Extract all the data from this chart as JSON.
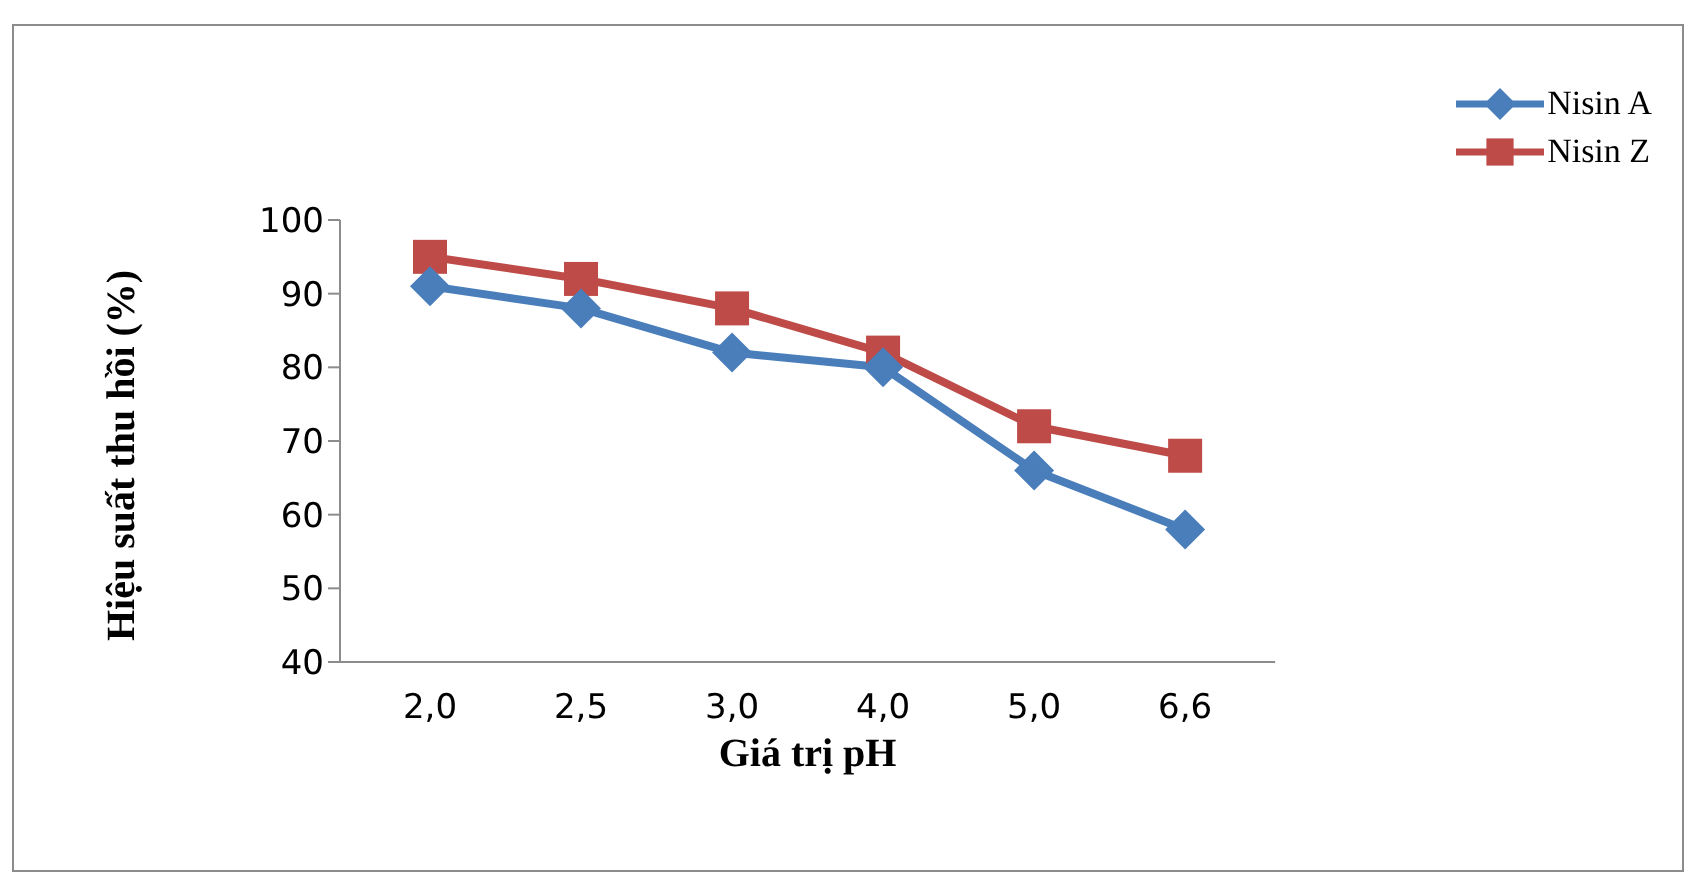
{
  "chart_data": {
    "type": "line",
    "xlabel": "Giá trị pH",
    "ylabel": "Hiệu suất thu hồi (%)",
    "categories": [
      "2,0",
      "2,5",
      "3,0",
      "4,0",
      "5,0",
      "6,6"
    ],
    "series": [
      {
        "name": "Nisin A",
        "color": "#4a7ebb",
        "marker": "diamond",
        "values": [
          91,
          88,
          82,
          80,
          66,
          58
        ]
      },
      {
        "name": "Nisin Z",
        "color": "#be4b48",
        "marker": "square",
        "values": [
          95,
          92,
          88,
          82,
          72,
          68
        ]
      }
    ],
    "ylim": [
      40,
      100
    ],
    "yticks": [
      40,
      50,
      60,
      70,
      80,
      90,
      100
    ],
    "grid": false,
    "legend": "top right"
  }
}
